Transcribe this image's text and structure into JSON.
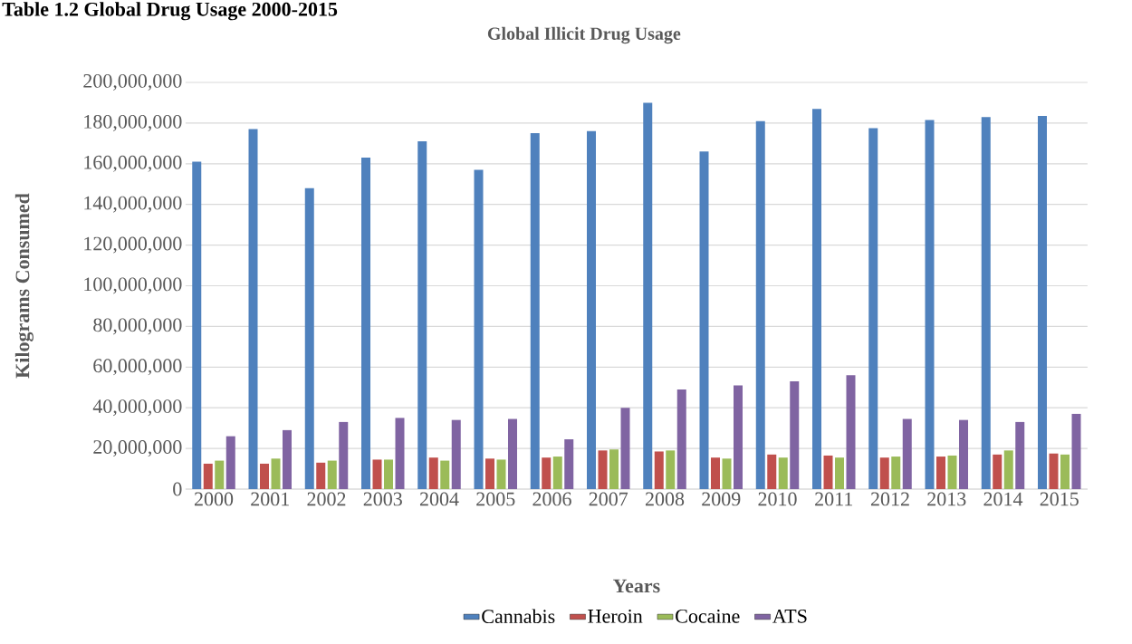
{
  "chart_data": {
    "type": "bar",
    "title": "Global Illicit Drug Usage",
    "xlabel": "Years",
    "ylabel": "Kilograms Consumed",
    "annotations": [
      "Table 1.2 Global Drug Usage 2000-2015"
    ],
    "categories": [
      "2000",
      "2001",
      "2002",
      "2003",
      "2004",
      "2005",
      "2006",
      "2007",
      "2008",
      "2009",
      "2010",
      "2011",
      "2012",
      "2013",
      "2014",
      "2015"
    ],
    "series": [
      {
        "name": "Cannabis",
        "color": "#4f81bd",
        "values": [
          161000000,
          177000000,
          148000000,
          163000000,
          171000000,
          157000000,
          175000000,
          176000000,
          190000000,
          166000000,
          181000000,
          187000000,
          177500000,
          181500000,
          183000000,
          183500000
        ]
      },
      {
        "name": "Heroin",
        "color": "#c0504d",
        "values": [
          12500000,
          12500000,
          13000000,
          14500000,
          15500000,
          15000000,
          15500000,
          19000000,
          18500000,
          15500000,
          17000000,
          16500000,
          15500000,
          16000000,
          17000000,
          17500000
        ]
      },
      {
        "name": "Cocaine",
        "color": "#9bbb59",
        "values": [
          14000000,
          15000000,
          14000000,
          14500000,
          14000000,
          14500000,
          16000000,
          19500000,
          19000000,
          15000000,
          15500000,
          15500000,
          16000000,
          16500000,
          19000000,
          17000000
        ]
      },
      {
        "name": "ATS",
        "color": "#8064a2",
        "values": [
          26000000,
          29000000,
          33000000,
          35000000,
          34000000,
          34500000,
          24500000,
          40000000,
          49000000,
          51000000,
          53000000,
          56000000,
          34500000,
          34000000,
          33000000,
          37000000
        ]
      }
    ],
    "ylim": [
      0,
      200000000
    ],
    "yticks": [
      0,
      {
        "value": 20000000,
        "label": "20,000,000"
      },
      {
        "value": 40000000,
        "label": "40,000,000"
      },
      {
        "value": 60000000,
        "label": "60,000,000"
      },
      {
        "value": 80000000,
        "label": "80,000,000"
      },
      {
        "value": 100000000,
        "label": "100,000,000"
      },
      {
        "value": 120000000,
        "label": "120,000,000"
      },
      {
        "value": 140000000,
        "label": "140,000,000"
      },
      {
        "value": 160000000,
        "label": "160,000,000"
      },
      {
        "value": 180000000,
        "label": "180,000,000"
      },
      {
        "value": 200000000,
        "label": "200,000,000"
      }
    ],
    "grid": "y",
    "legend": "bottom"
  }
}
